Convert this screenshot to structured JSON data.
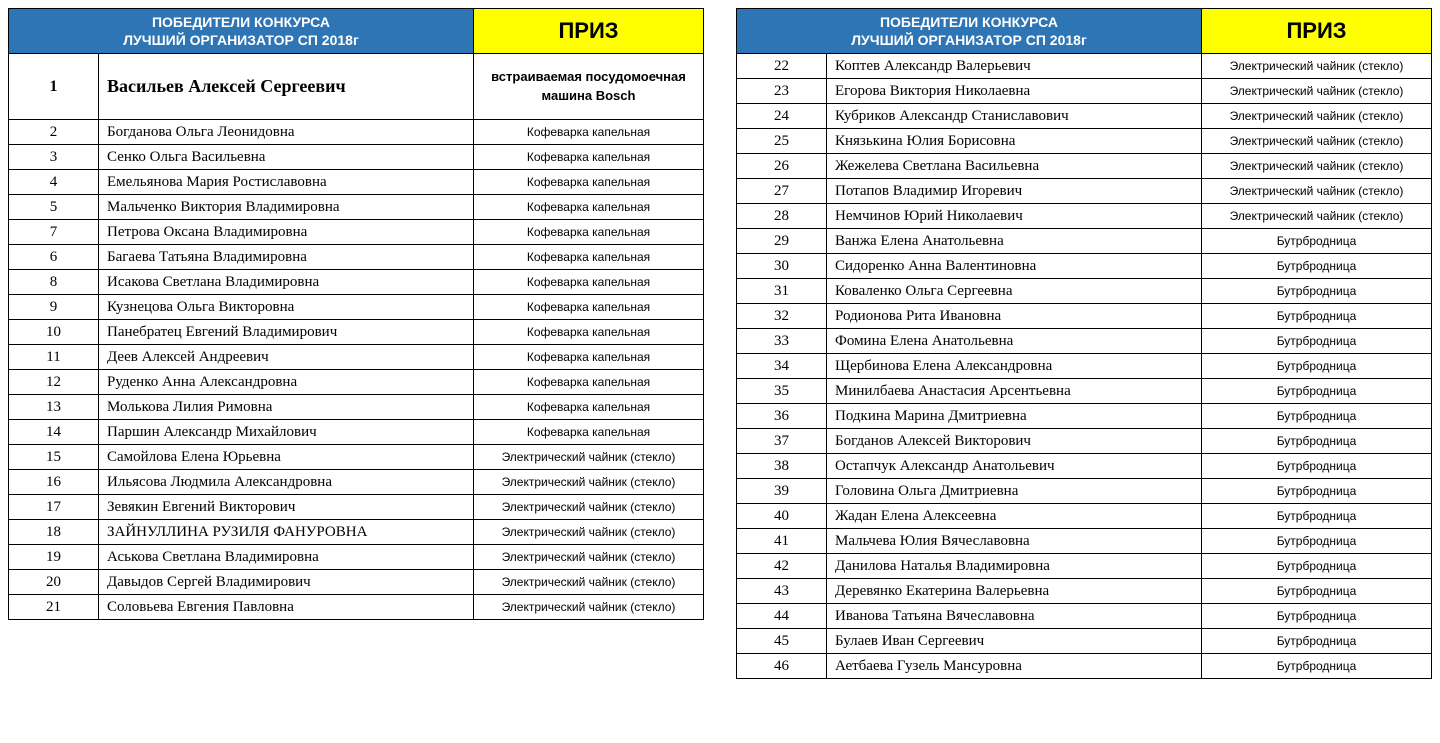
{
  "header": {
    "winners_line1": "ПОБЕДИТЕЛИ КОНКУРСА",
    "winners_line2": "ЛУЧШИЙ ОРГАНИЗАТОР СП 2018г",
    "prize_label": "ПРИЗ"
  },
  "colors": {
    "header_bg": "#2e75b6",
    "header_fg": "#ffffff",
    "prize_bg": "#ffff00",
    "border": "#000000",
    "row_bg": "#ffffff"
  },
  "left": {
    "rows": [
      {
        "n": 1,
        "name": "Васильев Алексей Сергеевич",
        "prize": "встраиваемая посудомоечная машина Bosch",
        "highlight": true
      },
      {
        "n": 2,
        "name": "Богданова Ольга Леонидовна",
        "prize": "Кофеварка капельная"
      },
      {
        "n": 3,
        "name": "Сенко Ольга Васильевна",
        "prize": "Кофеварка капельная"
      },
      {
        "n": 4,
        "name": "Емельянова Мария Ростиславовна",
        "prize": "Кофеварка капельная"
      },
      {
        "n": 5,
        "name": "Мальченко Виктория Владимировна",
        "prize": "Кофеварка капельная"
      },
      {
        "n": 7,
        "name": "Петрова Оксана Владимировна",
        "prize": "Кофеварка капельная"
      },
      {
        "n": 6,
        "name": "Багаева Татьяна Владимировна",
        "prize": "Кофеварка капельная"
      },
      {
        "n": 8,
        "name": "Исакова Светлана Владимировна",
        "prize": "Кофеварка капельная"
      },
      {
        "n": 9,
        "name": "Кузнецова Ольга Викторовна",
        "prize": "Кофеварка капельная"
      },
      {
        "n": 10,
        "name": "Панебратец Евгений Владимирович",
        "prize": "Кофеварка капельная"
      },
      {
        "n": 11,
        "name": "Деев Алексей Андреевич",
        "prize": "Кофеварка капельная"
      },
      {
        "n": 12,
        "name": "Руденко Анна Александровна",
        "prize": "Кофеварка капельная"
      },
      {
        "n": 13,
        "name": "Молькова Лилия Римовна",
        "prize": "Кофеварка капельная"
      },
      {
        "n": 14,
        "name": "Паршин Александр Михайлович",
        "prize": "Кофеварка капельная"
      },
      {
        "n": 15,
        "name": "Самойлова Елена Юрьевна",
        "prize": "Электрический чайник (стекло)"
      },
      {
        "n": 16,
        "name": "Ильясова Людмила Александровна",
        "prize": "Электрический чайник (стекло)"
      },
      {
        "n": 17,
        "name": "Зевякин Евгений Викторович",
        "prize": "Электрический чайник (стекло)"
      },
      {
        "n": 18,
        "name": "ЗАЙНУЛЛИНА РУЗИЛЯ ФАНУРОВНА",
        "prize": "Электрический чайник (стекло)"
      },
      {
        "n": 19,
        "name": "Аськова Светлана Владимировна",
        "prize": "Электрический чайник (стекло)"
      },
      {
        "n": 20,
        "name": "Давыдов Сергей Владимирович",
        "prize": "Электрический чайник (стекло)"
      },
      {
        "n": 21,
        "name": "Соловьева Евгения Павловна",
        "prize": "Электрический чайник (стекло)"
      }
    ]
  },
  "right": {
    "rows": [
      {
        "n": 22,
        "name": "Коптев Александр Валерьевич",
        "prize": "Электрический чайник (стекло)"
      },
      {
        "n": 23,
        "name": "Егорова Виктория Николаевна",
        "prize": "Электрический чайник (стекло)"
      },
      {
        "n": 24,
        "name": "Кубриков Александр Станиславович",
        "prize": "Электрический чайник (стекло)"
      },
      {
        "n": 25,
        "name": "Князькина Юлия Борисовна",
        "prize": "Электрический чайник (стекло)"
      },
      {
        "n": 26,
        "name": "Жежелева Светлана Васильевна",
        "prize": "Электрический чайник (стекло)"
      },
      {
        "n": 27,
        "name": "Потапов Владимир Игоревич",
        "prize": "Электрический чайник (стекло)"
      },
      {
        "n": 28,
        "name": "Немчинов Юрий Николаевич",
        "prize": "Электрический чайник (стекло)"
      },
      {
        "n": 29,
        "name": "Ванжа Елена Анатольевна",
        "prize": "Бутрбродница"
      },
      {
        "n": 30,
        "name": "Сидоренко Анна Валентиновна",
        "prize": "Бутрбродница"
      },
      {
        "n": 31,
        "name": "Коваленко Ольга Сергеевна",
        "prize": "Бутрбродница"
      },
      {
        "n": 32,
        "name": "Родионова Рита Ивановна",
        "prize": "Бутрбродница"
      },
      {
        "n": 33,
        "name": "Фомина Елена Анатольевна",
        "prize": "Бутрбродница"
      },
      {
        "n": 34,
        "name": "Щербинова Елена Александровна",
        "prize": "Бутрбродница"
      },
      {
        "n": 35,
        "name": "Минилбаева Анастасия Арсентьевна",
        "prize": "Бутрбродница"
      },
      {
        "n": 36,
        "name": "Подкина Марина Дмитриевна",
        "prize": "Бутрбродница"
      },
      {
        "n": 37,
        "name": "Богданов Алексей Викторович",
        "prize": "Бутрбродница"
      },
      {
        "n": 38,
        "name": "Остапчук Александр Анатольевич",
        "prize": "Бутрбродница"
      },
      {
        "n": 39,
        "name": "Головина Ольга Дмитриевна",
        "prize": "Бутрбродница"
      },
      {
        "n": 40,
        "name": "Жадан Елена Алексеевна",
        "prize": "Бутрбродница"
      },
      {
        "n": 41,
        "name": "Мальчева Юлия Вячеславовна",
        "prize": "Бутрбродница"
      },
      {
        "n": 42,
        "name": "Данилова Наталья Владимировна",
        "prize": "Бутрбродница"
      },
      {
        "n": 43,
        "name": "Деревянко Екатерина Валерьевна",
        "prize": "Бутрбродница"
      },
      {
        "n": 44,
        "name": "Иванова Татьяна Вячеславовна",
        "prize": "Бутрбродница"
      },
      {
        "n": 45,
        "name": "Булаев Иван Сергеевич",
        "prize": "Бутрбродница"
      },
      {
        "n": 46,
        "name": "Аетбаева Гузель Мансуровна",
        "prize": "Бутрбродница"
      }
    ]
  }
}
